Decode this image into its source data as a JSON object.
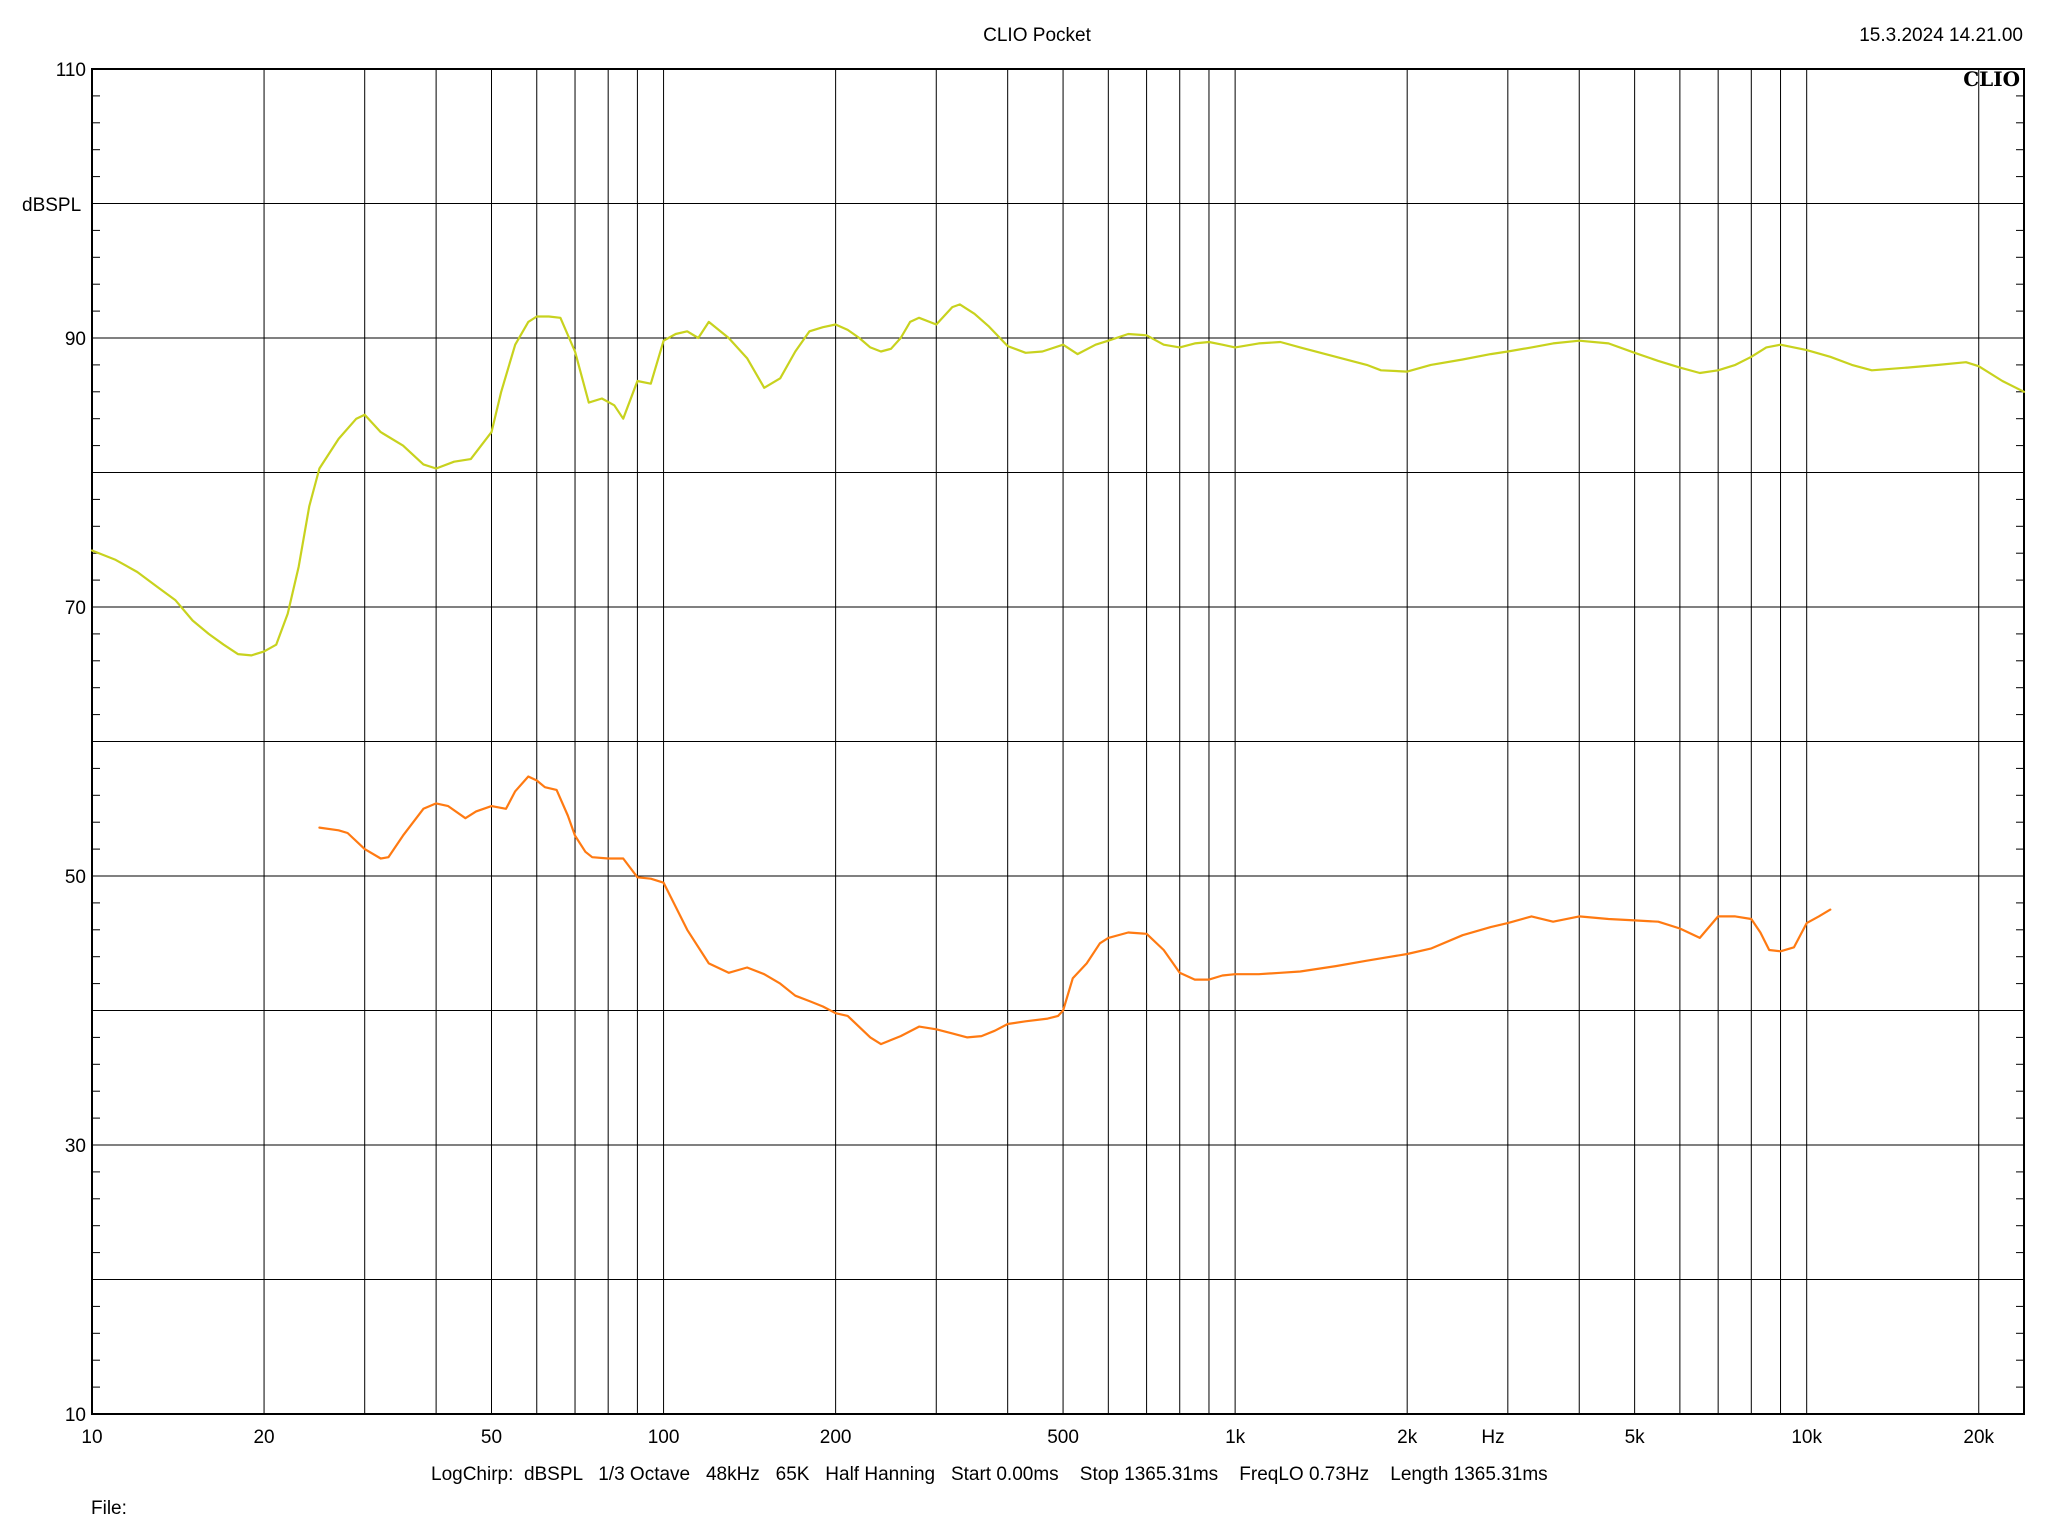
{
  "header": {
    "title": "CLIO Pocket",
    "timestamp": "15.3.2024 14.21.00",
    "logo": "CLIO"
  },
  "footer": {
    "settings": "LogChirp:  dBSPL   1/3 Octave   48kHz   65K   Half Hanning   Start 0.00ms    Stop 1365.31ms    FreqLO 0.73Hz    Length 1365.31ms",
    "file_label": "File:"
  },
  "chart_data": {
    "type": "line",
    "title": "CLIO Pocket",
    "xlabel": "Hz",
    "ylabel": "dBSPL",
    "xscale": "log",
    "xlim": [
      10,
      24000
    ],
    "ylim": [
      10,
      110
    ],
    "grid": true,
    "x_ticks": [
      {
        "value": 10,
        "label": "10"
      },
      {
        "value": 20,
        "label": "20"
      },
      {
        "value": 50,
        "label": "50"
      },
      {
        "value": 100,
        "label": "100"
      },
      {
        "value": 200,
        "label": "200"
      },
      {
        "value": 500,
        "label": "500"
      },
      {
        "value": 1000,
        "label": "1k"
      },
      {
        "value": 2000,
        "label": "2k"
      },
      {
        "value": 5000,
        "label": "5k"
      },
      {
        "value": 10000,
        "label": "10k"
      },
      {
        "value": 20000,
        "label": "20k"
      }
    ],
    "y_ticks": [
      {
        "value": 10,
        "label": "10"
      },
      {
        "value": 30,
        "label": "30"
      },
      {
        "value": 50,
        "label": "50"
      },
      {
        "value": 70,
        "label": "70"
      },
      {
        "value": 90,
        "label": "90"
      },
      {
        "value": 110,
        "label": "110"
      }
    ],
    "series": [
      {
        "color": "#c8d21e",
        "x": [
          10,
          11,
          12,
          13,
          14,
          15,
          16,
          17,
          18,
          19,
          20,
          21,
          22,
          23,
          24,
          25,
          27,
          29,
          30,
          32,
          35,
          38,
          40,
          43,
          46,
          50,
          52,
          55,
          58,
          60,
          63,
          66,
          70,
          74,
          78,
          82,
          85,
          90,
          95,
          100,
          105,
          110,
          115,
          120,
          130,
          140,
          150,
          160,
          170,
          180,
          190,
          200,
          210,
          220,
          230,
          240,
          250,
          260,
          270,
          280,
          300,
          320,
          330,
          350,
          370,
          400,
          430,
          460,
          500,
          530,
          570,
          600,
          650,
          700,
          750,
          800,
          850,
          900,
          950,
          1000,
          1100,
          1200,
          1300,
          1500,
          1700,
          1800,
          2000,
          2200,
          2500,
          2800,
          3000,
          3300,
          3600,
          4000,
          4500,
          5000,
          5500,
          6000,
          6500,
          7000,
          7500,
          8000,
          8500,
          9000,
          10000,
          11000,
          12000,
          13000,
          15000,
          17000,
          19000,
          20000,
          22000,
          24000
        ],
        "values": [
          74.2,
          73.5,
          72.6,
          71.5,
          70.5,
          69.0,
          68.0,
          67.2,
          66.5,
          66.4,
          66.7,
          67.2,
          69.5,
          73.0,
          77.5,
          80.3,
          82.5,
          84.0,
          84.3,
          83.0,
          82.0,
          80.6,
          80.3,
          80.8,
          81.0,
          83.0,
          86.0,
          89.5,
          91.2,
          91.6,
          91.6,
          91.5,
          89.0,
          85.2,
          85.5,
          85.0,
          84.0,
          86.8,
          86.6,
          89.8,
          90.3,
          90.5,
          90.0,
          91.2,
          90.0,
          88.5,
          86.3,
          87.0,
          89.0,
          90.5,
          90.8,
          91.0,
          90.6,
          90.0,
          89.3,
          89.0,
          89.2,
          90.0,
          91.2,
          91.5,
          91.0,
          92.3,
          92.5,
          91.8,
          90.9,
          89.4,
          88.9,
          89.0,
          89.5,
          88.8,
          89.5,
          89.8,
          90.3,
          90.2,
          89.5,
          89.3,
          89.6,
          89.7,
          89.5,
          89.3,
          89.6,
          89.7,
          89.3,
          88.6,
          88.0,
          87.6,
          87.5,
          88.0,
          88.4,
          88.8,
          89.0,
          89.3,
          89.6,
          89.8,
          89.6,
          88.9,
          88.3,
          87.8,
          87.4,
          87.6,
          88.0,
          88.6,
          89.3,
          89.5,
          89.1,
          88.6,
          88.0,
          87.6,
          87.8,
          88.0,
          88.2,
          87.9,
          86.8,
          86.0
        ]
      },
      {
        "color": "#ff7a12",
        "x": [
          25,
          27,
          28,
          30,
          32,
          33,
          35,
          38,
          40,
          42,
          45,
          47,
          50,
          53,
          55,
          58,
          60,
          62,
          65,
          68,
          70,
          73,
          75,
          80,
          85,
          90,
          95,
          100,
          110,
          120,
          130,
          140,
          150,
          160,
          170,
          180,
          190,
          200,
          210,
          230,
          240,
          260,
          280,
          300,
          320,
          340,
          360,
          380,
          400,
          430,
          470,
          490,
          500,
          520,
          550,
          580,
          600,
          650,
          700,
          750,
          800,
          850,
          900,
          950,
          1000,
          1100,
          1200,
          1300,
          1500,
          1700,
          2000,
          2200,
          2500,
          2800,
          3000,
          3300,
          3600,
          4000,
          4500,
          5000,
          5500,
          6000,
          6500,
          7000,
          7500,
          8000,
          8300,
          8600,
          9000,
          9500,
          10000,
          10500,
          11000
        ],
        "values": [
          53.6,
          53.4,
          53.2,
          52.0,
          51.3,
          51.4,
          53.0,
          55.0,
          55.4,
          55.2,
          54.3,
          54.8,
          55.2,
          55.0,
          56.3,
          57.4,
          57.1,
          56.6,
          56.4,
          54.5,
          53.0,
          51.8,
          51.4,
          51.3,
          51.3,
          49.9,
          49.8,
          49.5,
          46.0,
          43.5,
          42.8,
          43.2,
          42.7,
          42.0,
          41.1,
          40.7,
          40.3,
          39.8,
          39.6,
          38.0,
          37.5,
          38.1,
          38.8,
          38.6,
          38.3,
          38.0,
          38.1,
          38.5,
          39.0,
          39.2,
          39.4,
          39.6,
          40.0,
          42.4,
          43.5,
          45.0,
          45.4,
          45.8,
          45.7,
          44.5,
          42.8,
          42.3,
          42.3,
          42.6,
          42.7,
          42.7,
          42.8,
          42.9,
          43.3,
          43.7,
          44.2,
          44.6,
          45.6,
          46.2,
          46.5,
          47.0,
          46.6,
          47.0,
          46.8,
          46.7,
          46.6,
          46.1,
          45.4,
          47.0,
          47.0,
          46.8,
          45.8,
          44.5,
          44.4,
          44.7,
          46.5,
          47.0,
          47.5
        ]
      }
    ]
  }
}
